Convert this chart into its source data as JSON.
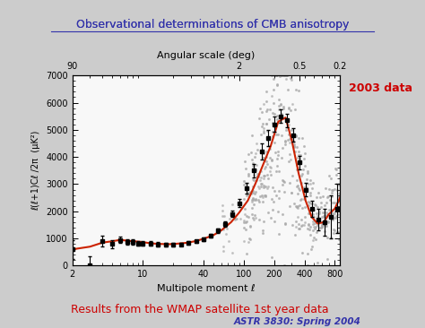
{
  "title": "Observational determinations of CMB anisotropy",
  "plot_title": "Angular scale (deg)",
  "xlabel": "Multipole moment ℓ",
  "ylabel": "ℓ(ℓ+1)Cℓ /2π  (μK²)",
  "annotation_2003": "2003 data",
  "annotation_wmap": "Results from the WMAP satellite 1st year data",
  "annotation_astr": "ASTR 3830: Spring 2004",
  "bg_color": "#cccccc",
  "plot_bg_color": "#f8f8f8",
  "title_color": "#3333aa",
  "annotation_color": "#cc0000",
  "astr_color": "#3333aa",
  "curve_color": "#cc2200",
  "scatter_color": "#aaaaaa",
  "ylim": [
    0,
    7000
  ],
  "xlim_log": [
    2,
    900
  ],
  "wmap_binned_ell": [
    2,
    3,
    4,
    5,
    6,
    7,
    8,
    9,
    10,
    12,
    14,
    17,
    20,
    24,
    28,
    34,
    40,
    47,
    55,
    65,
    77,
    90,
    107,
    127,
    150,
    175,
    202,
    234,
    270,
    312,
    360,
    415,
    478,
    550,
    633,
    729,
    839
  ],
  "wmap_binned_power": [
    600,
    0,
    900,
    800,
    950,
    870,
    870,
    820,
    820,
    820,
    790,
    780,
    780,
    790,
    830,
    890,
    970,
    1100,
    1290,
    1530,
    1900,
    2300,
    2850,
    3500,
    4200,
    4700,
    5200,
    5500,
    5350,
    4800,
    3800,
    2800,
    2100,
    1700,
    1600,
    1800,
    2100
  ],
  "wmap_err": [
    350,
    350,
    200,
    150,
    120,
    100,
    90,
    80,
    80,
    70,
    70,
    60,
    60,
    60,
    60,
    60,
    60,
    70,
    80,
    100,
    120,
    150,
    200,
    250,
    300,
    300,
    280,
    250,
    250,
    250,
    250,
    250,
    300,
    400,
    500,
    800,
    900
  ],
  "theory_ell": [
    2,
    3,
    4,
    5,
    6,
    7,
    8,
    10,
    12,
    15,
    18,
    22,
    27,
    33,
    40,
    50,
    60,
    75,
    90,
    110,
    130,
    155,
    185,
    220,
    260,
    300,
    350,
    410,
    470,
    540,
    620,
    700,
    800,
    900
  ],
  "theory_power": [
    600,
    700,
    850,
    900,
    950,
    920,
    900,
    870,
    820,
    800,
    790,
    810,
    840,
    900,
    990,
    1120,
    1300,
    1600,
    1950,
    2400,
    3000,
    3700,
    4400,
    5300,
    5450,
    4600,
    3400,
    2400,
    1800,
    1550,
    1600,
    1900,
    2100,
    2500
  ],
  "figsize": [
    4.74,
    3.66
  ],
  "dpi": 100
}
